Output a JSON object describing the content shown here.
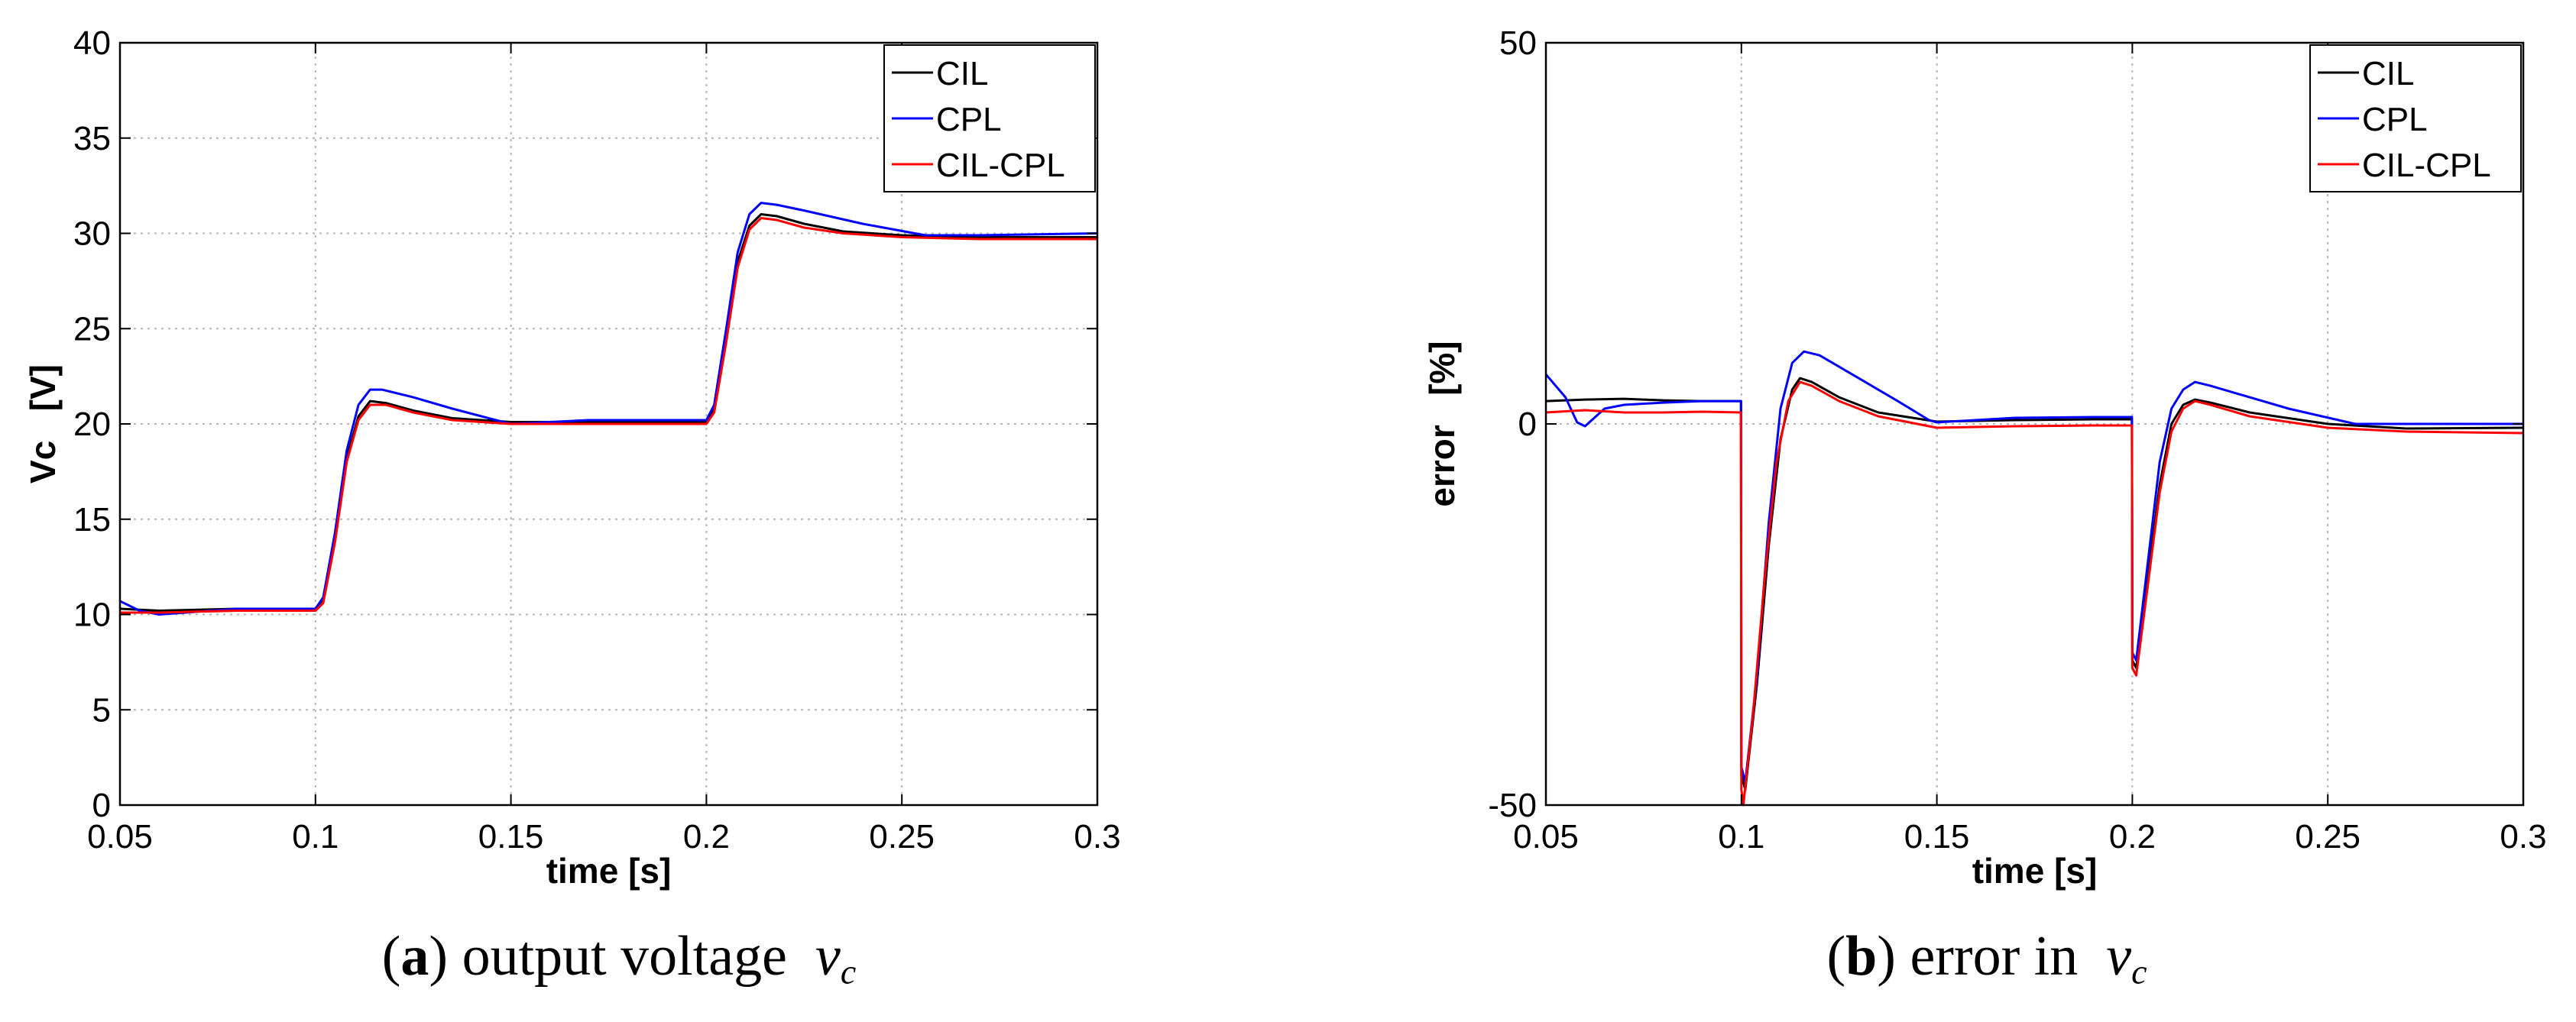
{
  "figure": {
    "captions": [
      {
        "letter": "a",
        "text": "output voltage",
        "symbol": "v",
        "subscript": "c"
      },
      {
        "letter": "b",
        "text": "error in",
        "symbol": "v",
        "subscript": "c"
      }
    ]
  },
  "chart_data": [
    {
      "type": "line",
      "title": "",
      "xlabel": "time [s]",
      "ylabel": "Vc   [V]",
      "xlim": [
        0.05,
        0.3
      ],
      "ylim": [
        0,
        40
      ],
      "xticks": [
        0.05,
        0.1,
        0.15,
        0.2,
        0.25,
        0.3
      ],
      "xtick_labels": [
        "0.05",
        "0.1",
        "0.15",
        "0.2",
        "0.25",
        "0.3"
      ],
      "yticks": [
        0,
        5,
        10,
        15,
        20,
        25,
        30,
        35,
        40
      ],
      "ytick_labels": [
        "0",
        "5",
        "10",
        "15",
        "20",
        "25",
        "30",
        "35",
        "40"
      ],
      "grid": true,
      "legend": "top-right",
      "series": [
        {
          "name": "CIL",
          "color": "#000000",
          "x": [
            0.05,
            0.06,
            0.08,
            0.1,
            0.102,
            0.105,
            0.108,
            0.111,
            0.114,
            0.118,
            0.125,
            0.135,
            0.15,
            0.17,
            0.19,
            0.2,
            0.202,
            0.205,
            0.208,
            0.211,
            0.214,
            0.218,
            0.225,
            0.235,
            0.25,
            0.27,
            0.3
          ],
          "y": [
            10.3,
            10.2,
            10.3,
            10.3,
            10.8,
            14.0,
            18.2,
            20.4,
            21.2,
            21.1,
            20.7,
            20.3,
            20.1,
            20.1,
            20.1,
            20.1,
            20.8,
            24.5,
            28.5,
            30.4,
            31.0,
            30.9,
            30.5,
            30.1,
            29.9,
            29.8,
            29.8
          ]
        },
        {
          "name": "CPL",
          "color": "#0000ff",
          "x": [
            0.05,
            0.055,
            0.06,
            0.08,
            0.1,
            0.102,
            0.105,
            0.108,
            0.111,
            0.114,
            0.117,
            0.125,
            0.135,
            0.148,
            0.15,
            0.17,
            0.19,
            0.2,
            0.202,
            0.205,
            0.208,
            0.211,
            0.214,
            0.218,
            0.225,
            0.24,
            0.256,
            0.27,
            0.3
          ],
          "y": [
            10.7,
            10.2,
            10.0,
            10.3,
            10.3,
            10.9,
            14.3,
            18.6,
            21.0,
            21.8,
            21.8,
            21.4,
            20.8,
            20.1,
            20.0,
            20.2,
            20.2,
            20.2,
            21.0,
            24.9,
            29.0,
            31.0,
            31.6,
            31.5,
            31.2,
            30.5,
            29.9,
            29.9,
            30.0
          ]
        },
        {
          "name": "CIL-CPL",
          "color": "#ff0000",
          "x": [
            0.05,
            0.06,
            0.08,
            0.1,
            0.102,
            0.105,
            0.108,
            0.111,
            0.114,
            0.118,
            0.125,
            0.135,
            0.15,
            0.17,
            0.19,
            0.2,
            0.202,
            0.205,
            0.208,
            0.211,
            0.214,
            0.218,
            0.225,
            0.235,
            0.25,
            0.27,
            0.3
          ],
          "y": [
            10.1,
            10.1,
            10.2,
            10.2,
            10.6,
            13.8,
            18.0,
            20.2,
            21.0,
            21.0,
            20.6,
            20.2,
            20.0,
            20.0,
            20.0,
            20.0,
            20.6,
            24.2,
            28.2,
            30.2,
            30.8,
            30.7,
            30.3,
            30.0,
            29.8,
            29.7,
            29.7
          ]
        }
      ]
    },
    {
      "type": "line",
      "title": "",
      "xlabel": "time [s]",
      "ylabel": "error   [%]",
      "xlim": [
        0.05,
        0.3
      ],
      "ylim": [
        -50,
        50
      ],
      "xticks": [
        0.05,
        0.1,
        0.15,
        0.2,
        0.25,
        0.3
      ],
      "xtick_labels": [
        "0.05",
        "0.1",
        "0.15",
        "0.2",
        "0.25",
        "0.3"
      ],
      "yticks": [
        -50,
        0,
        50
      ],
      "ytick_labels": [
        "-50",
        "0",
        "50"
      ],
      "grid": true,
      "legend": "top-right",
      "series": [
        {
          "name": "CIL",
          "color": "#000000",
          "x": [
            0.05,
            0.06,
            0.07,
            0.08,
            0.09,
            0.0999,
            0.1,
            0.101,
            0.104,
            0.107,
            0.11,
            0.113,
            0.115,
            0.118,
            0.125,
            0.135,
            0.15,
            0.17,
            0.19,
            0.1999,
            0.2,
            0.201,
            0.204,
            0.207,
            0.21,
            0.213,
            0.216,
            0.22,
            0.23,
            0.25,
            0.27,
            0.3
          ],
          "y": [
            3.0,
            3.2,
            3.3,
            3.1,
            3.0,
            3.0,
            -46.0,
            -48.0,
            -34.0,
            -16.0,
            -2.0,
            4.5,
            6.0,
            5.5,
            3.5,
            1.5,
            0.3,
            0.5,
            0.6,
            0.6,
            -31.0,
            -32.0,
            -20.0,
            -8.0,
            0.0,
            2.5,
            3.2,
            2.8,
            1.5,
            0.0,
            -0.6,
            -0.5
          ]
        },
        {
          "name": "CPL",
          "color": "#0000ff",
          "x": [
            0.05,
            0.055,
            0.058,
            0.06,
            0.065,
            0.07,
            0.08,
            0.09,
            0.0999,
            0.1,
            0.101,
            0.104,
            0.107,
            0.11,
            0.113,
            0.116,
            0.12,
            0.13,
            0.14,
            0.148,
            0.15,
            0.17,
            0.19,
            0.1999,
            0.2,
            0.201,
            0.204,
            0.207,
            0.21,
            0.213,
            0.216,
            0.22,
            0.23,
            0.24,
            0.257,
            0.27,
            0.3
          ],
          "y": [
            6.5,
            3.5,
            0.2,
            -0.3,
            2.0,
            2.5,
            2.8,
            3.0,
            3.0,
            -45.0,
            -47.0,
            -33.0,
            -13.0,
            2.0,
            8.0,
            9.5,
            9.0,
            6.0,
            3.0,
            0.5,
            0.2,
            0.8,
            0.9,
            0.9,
            -30.0,
            -31.0,
            -18.0,
            -5.0,
            2.0,
            4.5,
            5.5,
            5.0,
            3.5,
            2.0,
            0.0,
            0.0,
            0.0
          ]
        },
        {
          "name": "CIL-CPL",
          "color": "#ff0000",
          "x": [
            0.05,
            0.06,
            0.07,
            0.08,
            0.09,
            0.0999,
            0.1,
            0.1005,
            0.103,
            0.106,
            0.109,
            0.112,
            0.115,
            0.118,
            0.125,
            0.135,
            0.15,
            0.17,
            0.19,
            0.1999,
            0.2,
            0.201,
            0.204,
            0.207,
            0.21,
            0.213,
            0.216,
            0.22,
            0.23,
            0.25,
            0.27,
            0.3
          ],
          "y": [
            1.5,
            1.8,
            1.5,
            1.5,
            1.6,
            1.5,
            -48.0,
            -50.0,
            -38.0,
            -20.0,
            -5.0,
            3.0,
            5.5,
            5.0,
            3.0,
            1.0,
            -0.5,
            -0.3,
            -0.2,
            -0.2,
            -32.0,
            -33.0,
            -21.0,
            -9.0,
            -1.0,
            2.0,
            3.0,
            2.5,
            1.0,
            -0.5,
            -1.0,
            -1.2
          ]
        }
      ]
    }
  ]
}
